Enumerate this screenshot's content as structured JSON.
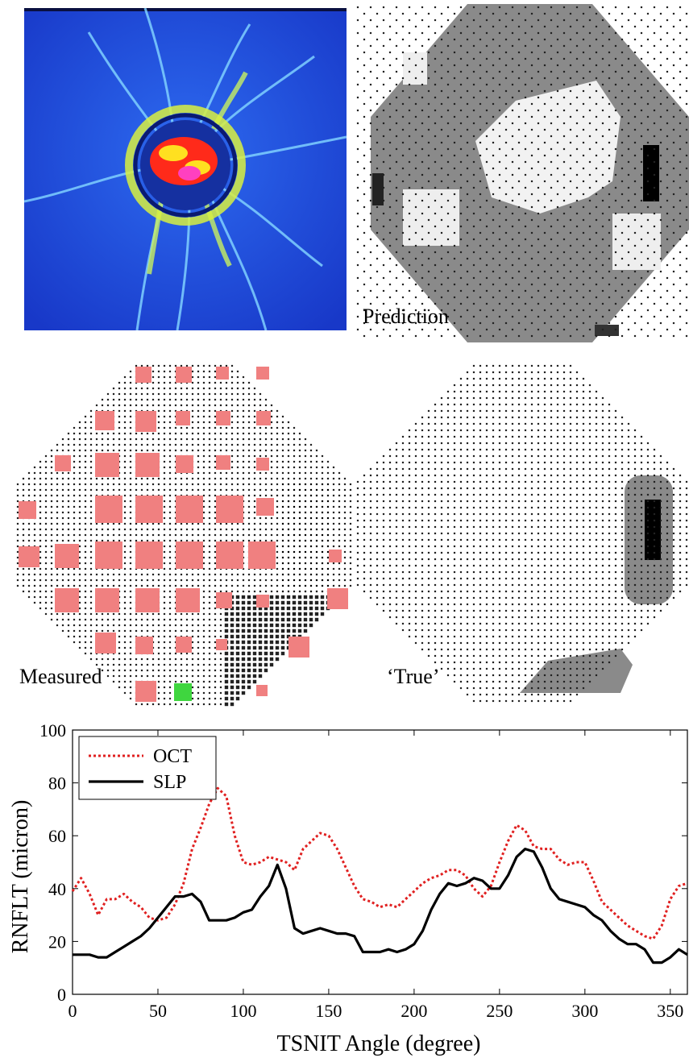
{
  "figure": {
    "panels": [
      {
        "id": "heatmap",
        "kind": "image",
        "description_label": ""
      },
      {
        "id": "prediction",
        "label": "Prediction"
      },
      {
        "id": "measured",
        "label": "Measured"
      },
      {
        "id": "true",
        "label": "‘True’"
      }
    ]
  },
  "colors": {
    "heatmap_background": "#1f4fd8",
    "grid_dot": "#000000",
    "prediction_gray": "#8a8a8a",
    "measured_red": "#f08080",
    "measured_green": "#3fd63f",
    "oct_line": "#e02020",
    "slp_line": "#000000"
  },
  "chart_data": {
    "type": "line",
    "title": "",
    "xlabel": "TSNIT Angle (degree)",
    "ylabel": "RNFLT (micron)",
    "xlim": [
      0,
      360
    ],
    "ylim": [
      0,
      100
    ],
    "xticks": [
      0,
      50,
      100,
      150,
      200,
      250,
      300,
      350
    ],
    "yticks": [
      0,
      20,
      40,
      60,
      80,
      100
    ],
    "legend_position": "top-left",
    "grid": false,
    "series": [
      {
        "name": "OCT",
        "style": "dotted",
        "color": "#e02020",
        "x": [
          0,
          5,
          10,
          15,
          20,
          25,
          30,
          35,
          40,
          45,
          50,
          55,
          60,
          65,
          70,
          75,
          80,
          85,
          90,
          95,
          100,
          105,
          110,
          115,
          120,
          125,
          130,
          135,
          140,
          145,
          150,
          155,
          160,
          165,
          170,
          175,
          180,
          185,
          190,
          195,
          200,
          205,
          210,
          215,
          220,
          225,
          230,
          235,
          240,
          245,
          250,
          255,
          260,
          265,
          270,
          275,
          280,
          285,
          290,
          295,
          300,
          305,
          310,
          315,
          320,
          325,
          330,
          335,
          340,
          345,
          350,
          355,
          360
        ],
        "values": [
          39,
          44,
          38,
          30,
          36,
          36,
          38,
          35,
          33,
          29,
          28,
          29,
          34,
          42,
          55,
          63,
          72,
          78,
          75,
          60,
          50,
          49,
          50,
          52,
          51,
          50,
          47,
          55,
          58,
          61,
          60,
          55,
          48,
          41,
          36,
          35,
          33,
          34,
          33,
          36,
          39,
          42,
          44,
          45,
          47,
          47,
          45,
          40,
          37,
          41,
          50,
          58,
          64,
          62,
          56,
          55,
          55,
          51,
          49,
          50,
          50,
          43,
          35,
          32,
          29,
          26,
          24,
          22,
          21,
          26,
          36,
          41,
          42
        ]
      },
      {
        "name": "SLP",
        "style": "solid",
        "color": "#000000",
        "x": [
          0,
          5,
          10,
          15,
          20,
          25,
          30,
          35,
          40,
          45,
          50,
          55,
          60,
          65,
          70,
          75,
          80,
          85,
          90,
          95,
          100,
          105,
          110,
          115,
          120,
          125,
          130,
          135,
          140,
          145,
          150,
          155,
          160,
          165,
          170,
          175,
          180,
          185,
          190,
          195,
          200,
          205,
          210,
          215,
          220,
          225,
          230,
          235,
          240,
          245,
          250,
          255,
          260,
          265,
          270,
          275,
          280,
          285,
          290,
          295,
          300,
          305,
          310,
          315,
          320,
          325,
          330,
          335,
          340,
          345,
          350,
          355,
          360
        ],
        "values": [
          15,
          15,
          15,
          14,
          14,
          16,
          18,
          20,
          22,
          25,
          29,
          33,
          37,
          37,
          38,
          35,
          28,
          28,
          28,
          29,
          31,
          32,
          37,
          41,
          49,
          40,
          25,
          23,
          24,
          25,
          24,
          23,
          23,
          22,
          16,
          16,
          16,
          17,
          16,
          17,
          19,
          24,
          32,
          38,
          42,
          41,
          42,
          44,
          43,
          40,
          40,
          45,
          52,
          55,
          54,
          48,
          40,
          36,
          35,
          34,
          33,
          30,
          28,
          24,
          21,
          19,
          19,
          17,
          12,
          12,
          14,
          17,
          15
        ]
      }
    ]
  }
}
